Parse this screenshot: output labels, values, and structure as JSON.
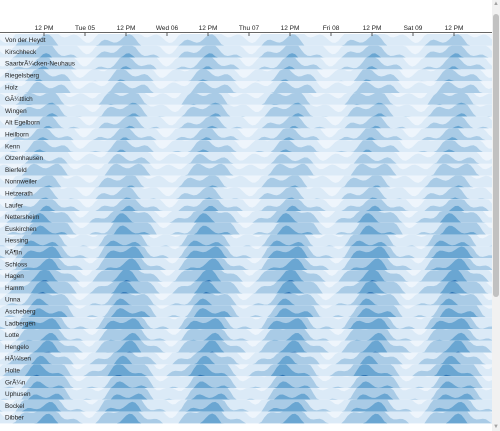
{
  "chart_data": {
    "type": "horizon",
    "time_axis": {
      "ticks": [
        "12 PM",
        "Tue 05",
        "12 PM",
        "Wed 06",
        "12 PM",
        "Thu 07",
        "12 PM",
        "Fri 08",
        "12 PM",
        "Sat 09",
        "12 PM"
      ]
    },
    "rows": [
      "Von der Heydt",
      "Kirschheck",
      "SaarbrÃ¼cken-Neuhaus",
      "Riegelsberg",
      "Holz",
      "GÃ¼ttlich",
      "Wingen",
      "Alt Egelborn",
      "Heilborn",
      "Kenn",
      "Otzenhausen",
      "Bierfeld",
      "Nonnweiler",
      "Hetzerath",
      "Laufer",
      "Nettersheim",
      "Euskirchen",
      "Hessing",
      "KÃ¶ln",
      "Schloss",
      "Hagen",
      "Hamm",
      "Unna",
      "Ascheberg",
      "Ladbergen",
      "Lotte",
      "Hengelo",
      "HÃ¼lsen",
      "Holte",
      "GrÃ¼n",
      "Uphusen",
      "Bockel",
      "Dibber"
    ],
    "colors": [
      "#dbeaf7",
      "#a9cbe6",
      "#6aa6d2",
      "#2f76b6",
      "#0b4f96"
    ]
  }
}
